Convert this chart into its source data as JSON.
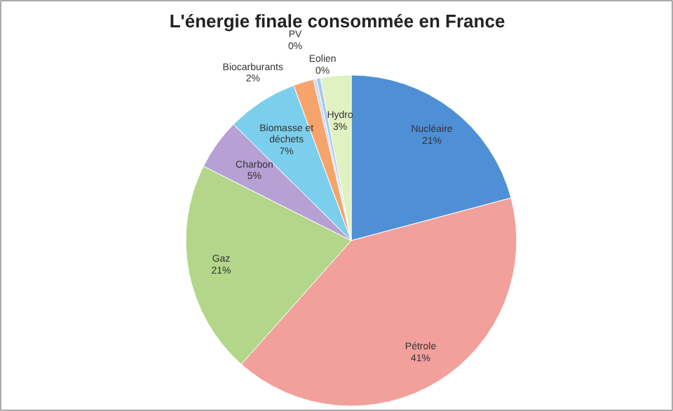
{
  "chart_data": {
    "type": "pie",
    "title": "L'énergie finale consommée en France",
    "categories": [
      "Nucléaire",
      "Pétrole",
      "Gaz",
      "Charbon",
      "Biomasse et déchets",
      "Biocarburants",
      "PV",
      "Eolien",
      "Hydro"
    ],
    "values": [
      21,
      41,
      21,
      5,
      7,
      2,
      0.3,
      0.4,
      3
    ],
    "value_labels": [
      "21%",
      "41%",
      "21%",
      "5%",
      "7%",
      "2%",
      "0%",
      "0%",
      "3%"
    ],
    "colors": [
      "#4f8fd6",
      "#f2a09b",
      "#b3d68a",
      "#b7a0d3",
      "#7ccfec",
      "#f7a46c",
      "#c9d9f2",
      "#a9c9ea",
      "#e0f1c2"
    ]
  }
}
